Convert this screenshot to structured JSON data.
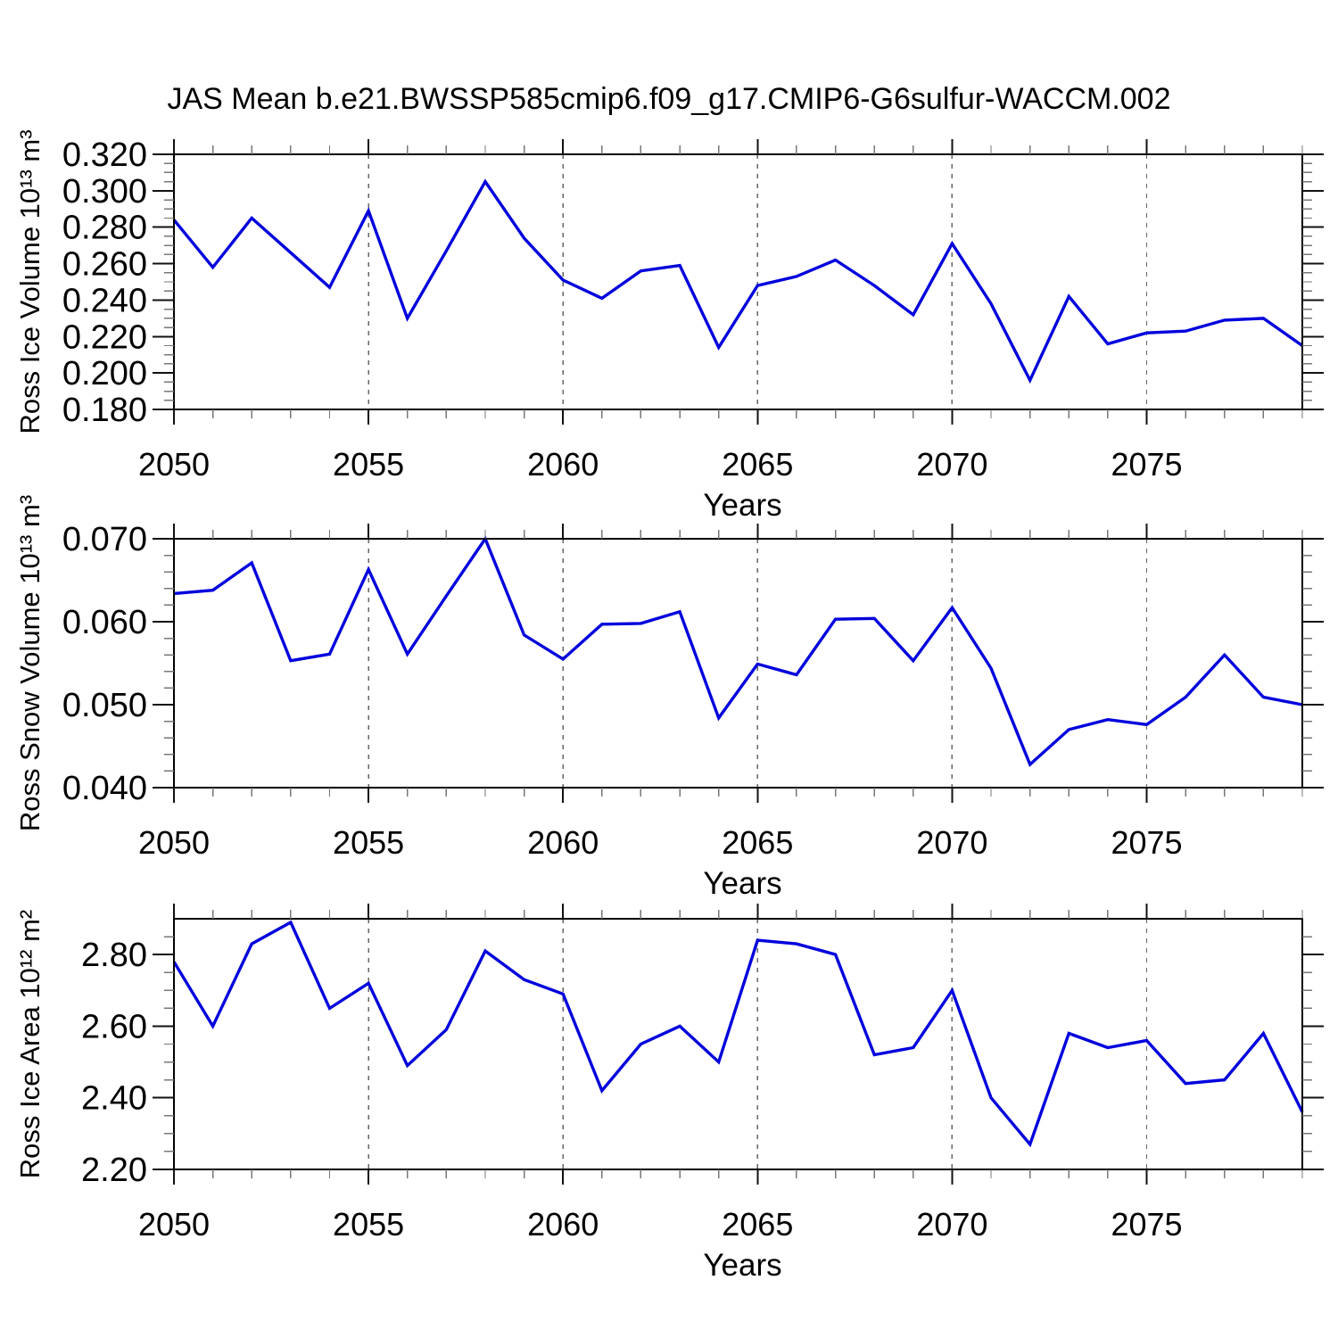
{
  "title": "JAS Mean b.e21.BWSSP585cmip6.f09_g17.CMIP6-G6sulfur-WACCM.002",
  "xlabel": "Years",
  "colors": {
    "line": "#0000dd",
    "axis": "#000000",
    "major_tick": "#111111",
    "minor_tick": "#777777",
    "grid": "#666666",
    "text": "#000000",
    "background": "#ffffff"
  },
  "years": [
    2050,
    2051,
    2052,
    2053,
    2054,
    2055,
    2056,
    2057,
    2058,
    2059,
    2060,
    2061,
    2062,
    2063,
    2064,
    2065,
    2066,
    2067,
    2068,
    2069,
    2070,
    2071,
    2072,
    2073,
    2074,
    2075,
    2076,
    2077,
    2078,
    2079
  ],
  "xtick_major_years": [
    2050,
    2055,
    2060,
    2065,
    2070,
    2075
  ],
  "xtick_labels": [
    "2050",
    "2055",
    "2060",
    "2065",
    "2070",
    "2075"
  ],
  "grid_years": [
    2055,
    2060,
    2065,
    2070,
    2075
  ],
  "chart_data": [
    {
      "type": "line",
      "ylabel": "Ross Ice Volume 10¹³ m³",
      "xlabel": "Years",
      "ylim": [
        0.18,
        0.32
      ],
      "yticks": [
        0.18,
        0.2,
        0.22,
        0.24,
        0.26,
        0.28,
        0.3,
        0.32
      ],
      "ytick_labels": [
        "0.180",
        "0.200",
        "0.220",
        "0.240",
        "0.260",
        "0.280",
        "0.300",
        "0.320"
      ],
      "yminor_step": 0.005,
      "grid": "vertical-dashed",
      "legend": "none",
      "values": [
        0.284,
        0.258,
        0.285,
        0.266,
        0.247,
        0.289,
        0.23,
        0.267,
        0.305,
        0.274,
        0.251,
        0.241,
        0.256,
        0.259,
        0.214,
        0.248,
        0.253,
        0.262,
        0.248,
        0.232,
        0.271,
        0.238,
        0.196,
        0.242,
        0.216,
        0.222,
        0.223,
        0.229,
        0.23,
        0.215
      ]
    },
    {
      "type": "line",
      "ylabel": "Ross Snow Volume 10¹³ m³",
      "xlabel": "Years",
      "ylim": [
        0.04,
        0.07
      ],
      "yticks": [
        0.04,
        0.05,
        0.06,
        0.07
      ],
      "ytick_labels": [
        "0.040",
        "0.050",
        "0.060",
        "0.070"
      ],
      "yminor_step": 0.002,
      "grid": "vertical-dashed",
      "legend": "none",
      "values": [
        0.0634,
        0.0638,
        0.0671,
        0.0553,
        0.0561,
        0.0663,
        0.0561,
        0.0631,
        0.07,
        0.0584,
        0.0555,
        0.0597,
        0.0598,
        0.0612,
        0.0484,
        0.0549,
        0.0536,
        0.0603,
        0.0604,
        0.0553,
        0.0617,
        0.0544,
        0.0428,
        0.047,
        0.0482,
        0.0476,
        0.0509,
        0.056,
        0.0509,
        0.05
      ]
    },
    {
      "type": "line",
      "ylabel": "Ross Ice Area 10¹² m²",
      "xlabel": "Years",
      "ylim": [
        2.2,
        2.9
      ],
      "yticks": [
        2.2,
        2.4,
        2.6,
        2.8
      ],
      "ytick_labels": [
        "2.20",
        "2.40",
        "2.60",
        "2.80"
      ],
      "yminor_step": 0.05,
      "grid": "vertical-dashed",
      "legend": "none",
      "values": [
        2.78,
        2.6,
        2.83,
        2.89,
        2.65,
        2.72,
        2.49,
        2.59,
        2.81,
        2.73,
        2.69,
        2.42,
        2.55,
        2.6,
        2.5,
        2.84,
        2.83,
        2.8,
        2.52,
        2.54,
        2.7,
        2.4,
        2.27,
        2.58,
        2.54,
        2.56,
        2.44,
        2.45,
        2.58,
        2.36
      ]
    }
  ]
}
